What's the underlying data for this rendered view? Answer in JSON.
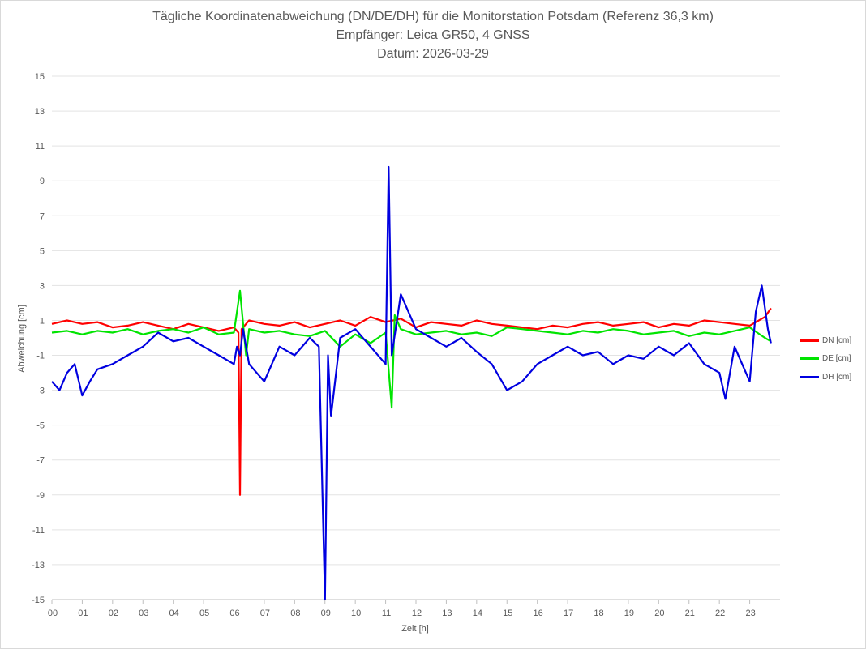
{
  "title": "Tägliche Koordinatenabweichung (DN/DE/DH) für die Monitorstation Potsdam (Referenz 36,3 km)",
  "subtitle1": "Empfänger: Leica GR50, 4 GNSS",
  "subtitle2": "Datum: 2026-03-29",
  "chart_data": {
    "type": "line",
    "title": "Tägliche Koordinatenabweichung (DN/DE/DH) für die Monitorstation Potsdam (Referenz 36,3 km)",
    "xlabel": "Zeit [h]",
    "ylabel": "Abweichung [cm]",
    "xlim": [
      0,
      24
    ],
    "ylim": [
      -15,
      15
    ],
    "x_ticks": [
      "00",
      "01",
      "02",
      "03",
      "04",
      "05",
      "06",
      "07",
      "08",
      "09",
      "10",
      "11",
      "12",
      "13",
      "14",
      "15",
      "16",
      "17",
      "18",
      "19",
      "20",
      "21",
      "22",
      "23"
    ],
    "y_ticks": [
      15,
      13,
      11,
      9,
      7,
      5,
      3,
      1,
      -1,
      -3,
      -5,
      -7,
      -9,
      -11,
      -13,
      -15
    ],
    "grid": "horizontal",
    "legend_position": "right",
    "series": [
      {
        "name": "DN [cm]",
        "color": "#ff0000",
        "x": [
          0,
          0.5,
          1,
          1.5,
          2,
          2.5,
          3,
          3.5,
          4,
          4.5,
          5,
          5.5,
          6,
          6.15,
          6.2,
          6.25,
          6.5,
          7,
          7.5,
          8,
          8.5,
          9,
          9.5,
          10,
          10.5,
          11,
          11.5,
          12,
          12.5,
          13,
          13.5,
          14,
          14.5,
          15,
          15.5,
          16,
          16.5,
          17,
          17.5,
          18,
          18.5,
          19,
          19.5,
          20,
          20.5,
          21,
          21.5,
          22,
          22.5,
          23,
          23.5,
          23.7
        ],
        "values": [
          0.8,
          1.0,
          0.8,
          0.9,
          0.6,
          0.7,
          0.9,
          0.7,
          0.5,
          0.8,
          0.6,
          0.4,
          0.6,
          0.3,
          -9.0,
          0.5,
          1.0,
          0.8,
          0.7,
          0.9,
          0.6,
          0.8,
          1.0,
          0.7,
          1.2,
          0.9,
          1.1,
          0.6,
          0.9,
          0.8,
          0.7,
          1.0,
          0.8,
          0.7,
          0.6,
          0.5,
          0.7,
          0.6,
          0.8,
          0.9,
          0.7,
          0.8,
          0.9,
          0.6,
          0.8,
          0.7,
          1.0,
          0.9,
          0.8,
          0.7,
          1.2,
          1.7
        ]
      },
      {
        "name": "DE [cm]",
        "color": "#00e400",
        "x": [
          0,
          0.5,
          1,
          1.5,
          2,
          2.5,
          3,
          3.5,
          4,
          4.5,
          5,
          5.5,
          6,
          6.2,
          6.4,
          6.5,
          7,
          7.5,
          8,
          8.5,
          9,
          9.5,
          10,
          10.5,
          11,
          11.2,
          11.3,
          11.5,
          12,
          12.5,
          13,
          13.5,
          14,
          14.5,
          15,
          15.5,
          16,
          16.5,
          17,
          17.5,
          18,
          18.5,
          19,
          19.5,
          20,
          20.5,
          21,
          21.5,
          22,
          22.5,
          23,
          23.5,
          23.7
        ],
        "values": [
          0.3,
          0.4,
          0.2,
          0.4,
          0.3,
          0.5,
          0.2,
          0.4,
          0.5,
          0.3,
          0.6,
          0.2,
          0.3,
          2.7,
          -1.0,
          0.5,
          0.3,
          0.4,
          0.2,
          0.1,
          0.4,
          -0.5,
          0.2,
          -0.3,
          0.3,
          -4.0,
          1.3,
          0.5,
          0.2,
          0.3,
          0.4,
          0.2,
          0.3,
          0.1,
          0.6,
          0.5,
          0.4,
          0.3,
          0.2,
          0.4,
          0.3,
          0.5,
          0.4,
          0.2,
          0.3,
          0.4,
          0.1,
          0.3,
          0.2,
          0.4,
          0.6,
          0.0,
          -0.2
        ]
      },
      {
        "name": "DH [cm]",
        "color": "#0000e0",
        "x": [
          0,
          0.25,
          0.5,
          0.75,
          1,
          1.25,
          1.5,
          2,
          2.5,
          3,
          3.5,
          4,
          4.5,
          5,
          5.5,
          6,
          6.1,
          6.2,
          6.3,
          6.5,
          7,
          7.5,
          8,
          8.5,
          8.8,
          9,
          9.1,
          9.2,
          9.5,
          10,
          10.5,
          11,
          11.1,
          11.2,
          11.5,
          12,
          12.5,
          13,
          13.5,
          14,
          14.5,
          15,
          15.5,
          16,
          16.5,
          17,
          17.5,
          18,
          18.5,
          19,
          19.5,
          20,
          20.5,
          21,
          21.5,
          22,
          22.2,
          22.5,
          23,
          23.2,
          23.4,
          23.6,
          23.7
        ],
        "values": [
          -2.5,
          -3.0,
          -2.0,
          -1.5,
          -3.3,
          -2.5,
          -1.8,
          -1.5,
          -1.0,
          -0.5,
          0.3,
          -0.2,
          0.0,
          -0.5,
          -1.0,
          -1.5,
          -0.5,
          -1.0,
          0.5,
          -1.5,
          -2.5,
          -0.5,
          -1.0,
          0.0,
          -0.5,
          -15.0,
          -1.0,
          -4.5,
          0.0,
          0.5,
          -0.5,
          -1.5,
          9.8,
          -1.0,
          2.5,
          0.5,
          0.0,
          -0.5,
          0.0,
          -0.8,
          -1.5,
          -3.0,
          -2.5,
          -1.5,
          -1.0,
          -0.5,
          -1.0,
          -0.8,
          -1.5,
          -1.0,
          -1.2,
          -0.5,
          -1.0,
          -0.3,
          -1.5,
          -2.0,
          -3.5,
          -0.5,
          -2.5,
          1.5,
          3.0,
          0.5,
          -0.3
        ]
      }
    ]
  }
}
